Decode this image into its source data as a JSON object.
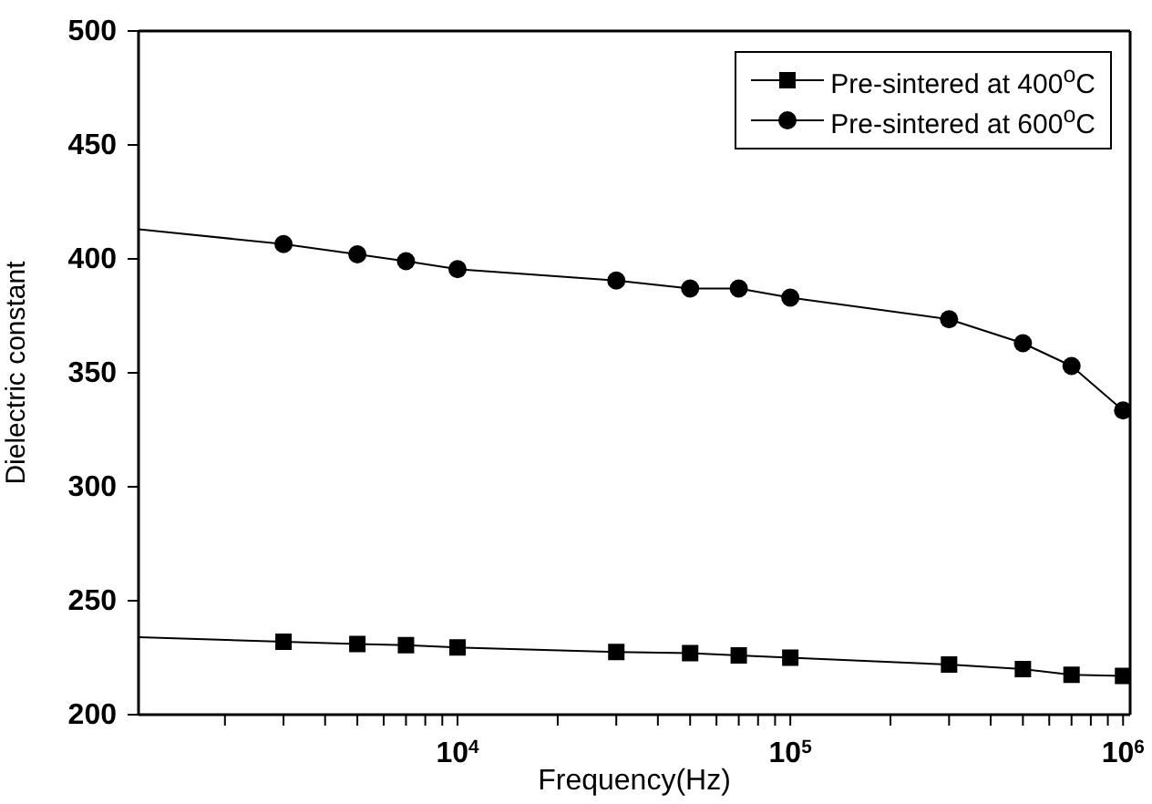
{
  "chart_data": {
    "type": "line",
    "xlabel": "Frequency(Hz)",
    "ylabel": "Dielectric constant",
    "log": "x",
    "xlim": [
      1100,
      1050000
    ],
    "xticks": [
      {
        "value": 2000,
        "label": null
      },
      {
        "value": 3000,
        "label": null
      },
      {
        "value": 4000,
        "label": null
      },
      {
        "value": 5000,
        "label": null
      },
      {
        "value": 6000,
        "label": null
      },
      {
        "value": 7000,
        "label": null
      },
      {
        "value": 8000,
        "label": null
      },
      {
        "value": 9000,
        "label": null
      },
      {
        "value": 10000,
        "label": "10$^{4}$"
      },
      {
        "value": 20000,
        "label": null
      },
      {
        "value": 30000,
        "label": null
      },
      {
        "value": 40000,
        "label": null
      },
      {
        "value": 50000,
        "label": null
      },
      {
        "value": 60000,
        "label": null
      },
      {
        "value": 70000,
        "label": null
      },
      {
        "value": 80000,
        "label": null
      },
      {
        "value": 90000,
        "label": null
      },
      {
        "value": 100000,
        "label": "10$^{5}$"
      },
      {
        "value": 200000,
        "label": null
      },
      {
        "value": 300000,
        "label": null
      },
      {
        "value": 400000,
        "label": null
      },
      {
        "value": 500000,
        "label": null
      },
      {
        "value": 600000,
        "label": null
      },
      {
        "value": 700000,
        "label": null
      },
      {
        "value": 800000,
        "label": null
      },
      {
        "value": 900000,
        "label": null
      },
      {
        "value": 1000000,
        "label": "10$^{6}$"
      }
    ],
    "ylim": [
      200,
      500
    ],
    "yticks": [
      200,
      250,
      300,
      350,
      400,
      450,
      500
    ],
    "legend": "top right",
    "line_style": "solid",
    "series": [
      {
        "name": "Pre-sintered at 400$^{o}$C",
        "color": "#000000",
        "marker": "square",
        "x": [
          1100,
          3000,
          5000,
          7000,
          10000,
          30000,
          50000,
          70000,
          100000,
          300000,
          500000,
          700000,
          1000000
        ],
        "values": [
          234,
          232,
          231,
          230.5,
          229.5,
          227.5,
          227,
          226,
          225,
          222,
          220,
          217.5,
          217
        ]
      },
      {
        "name": "Pre-sintered at 600$^{o}$C",
        "color": "#000000",
        "marker": "circle",
        "x": [
          1100,
          3000,
          5000,
          7000,
          10000,
          30000,
          50000,
          70000,
          100000,
          300000,
          500000,
          700000,
          1000000
        ],
        "values": [
          413,
          406.5,
          402,
          399,
          395.5,
          390.5,
          387,
          387,
          383,
          373.5,
          363,
          353,
          333.5
        ]
      }
    ]
  }
}
